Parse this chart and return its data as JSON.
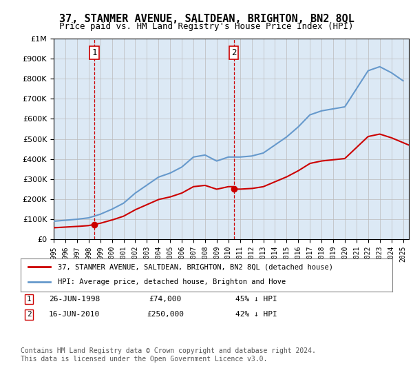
{
  "title": "37, STANMER AVENUE, SALTDEAN, BRIGHTON, BN2 8QL",
  "subtitle": "Price paid vs. HM Land Registry's House Price Index (HPI)",
  "background_color": "#dce9f5",
  "plot_bg_color": "#dce9f5",
  "sale1_year": 1998.48,
  "sale1_price": 74000,
  "sale1_label": "1",
  "sale2_year": 2010.46,
  "sale2_price": 250000,
  "sale2_label": "2",
  "legend_label_red": "37, STANMER AVENUE, SALTDEAN, BRIGHTON, BN2 8QL (detached house)",
  "legend_label_blue": "HPI: Average price, detached house, Brighton and Hove",
  "table_row1": [
    "1",
    "26-JUN-1998",
    "£74,000",
    "45% ↓ HPI"
  ],
  "table_row2": [
    "2",
    "16-JUN-2010",
    "£250,000",
    "42% ↓ HPI"
  ],
  "footer": "Contains HM Land Registry data © Crown copyright and database right 2024.\nThis data is licensed under the Open Government Licence v3.0.",
  "ylim": [
    0,
    1000000
  ],
  "xlim": [
    1995,
    2025.5
  ],
  "red_color": "#cc0000",
  "blue_color": "#6699cc",
  "grid_color": "#bbbbbb"
}
